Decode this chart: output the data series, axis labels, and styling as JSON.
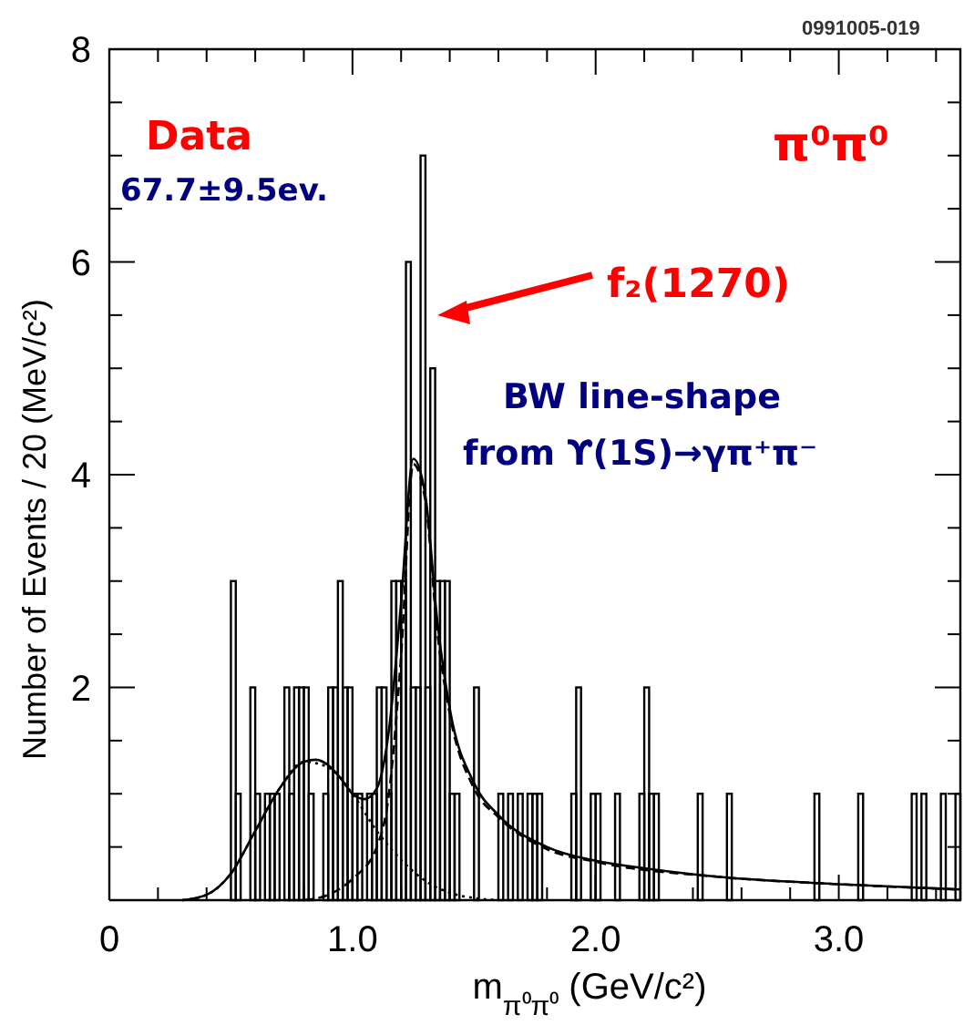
{
  "chart_data": {
    "type": "histogram",
    "xlabel": "m$_{π⁰π⁰}$ (GeV/c²)",
    "ylabel": "Number of Events / 20 (MeV/c²)",
    "xlim": [
      0,
      3.5
    ],
    "ylim": [
      0,
      8
    ],
    "xticks": [
      0,
      {
        "value": 0.2,
        "label": null
      },
      {
        "value": 0.4,
        "label": null
      },
      {
        "value": 0.6,
        "label": null
      },
      {
        "value": 0.8,
        "label": null
      },
      {
        "value": 1,
        "label": "1.0"
      },
      {
        "value": 1.2,
        "label": null
      },
      {
        "value": 1.4,
        "label": null
      },
      {
        "value": 1.6,
        "label": null
      },
      {
        "value": 1.8,
        "label": null
      },
      {
        "value": 2,
        "label": "2.0"
      },
      {
        "value": 2.2,
        "label": null
      },
      {
        "value": 2.4,
        "label": null
      },
      {
        "value": 2.6,
        "label": null
      },
      {
        "value": 2.8,
        "label": null
      },
      {
        "value": 3,
        "label": "3.0"
      },
      {
        "value": 3.2,
        "label": null
      },
      {
        "value": 3.4,
        "label": null
      }
    ],
    "yticks": [
      {
        "value": 0,
        "label": null
      },
      {
        "value": 0.5,
        "label": null
      },
      {
        "value": 1,
        "label": null
      },
      {
        "value": 1.5,
        "label": null
      },
      2,
      {
        "value": 2.5,
        "label": null
      },
      {
        "value": 3,
        "label": null
      },
      {
        "value": 3.5,
        "label": null
      },
      4,
      {
        "value": 4.5,
        "label": null
      },
      {
        "value": 5,
        "label": null
      },
      {
        "value": 5.5,
        "label": null
      },
      6,
      {
        "value": 6.5,
        "label": null
      },
      {
        "value": 7,
        "label": null
      },
      {
        "value": 7.5,
        "label": null
      },
      8
    ],
    "bins": [
      0,
      0.02,
      0.04,
      0.06,
      0.08,
      0.1,
      0.12,
      0.14,
      0.16,
      0.18,
      0.2,
      0.22,
      0.24,
      0.26,
      0.28,
      0.3,
      0.32,
      0.34,
      0.36,
      0.38,
      0.4,
      0.42,
      0.44,
      0.46,
      0.48,
      0.5,
      0.52,
      0.54,
      0.56,
      0.58,
      0.6,
      0.62,
      0.64,
      0.66,
      0.68,
      0.7,
      0.72,
      0.74,
      0.76,
      0.78,
      0.8,
      0.82,
      0.84,
      0.86,
      0.88,
      0.9,
      0.92,
      0.94,
      0.96,
      0.98,
      1,
      1.02,
      1.04,
      1.06,
      1.08,
      1.1,
      1.12,
      1.14,
      1.16,
      1.18,
      1.2,
      1.22,
      1.24,
      1.26,
      1.28,
      1.3,
      1.32,
      1.34,
      1.36,
      1.38,
      1.4,
      1.42,
      1.44,
      1.46,
      1.48,
      1.5,
      1.52,
      1.54,
      1.56,
      1.58,
      1.6,
      1.62,
      1.64,
      1.66,
      1.68,
      1.7,
      1.72,
      1.74,
      1.76,
      1.78,
      1.8,
      1.82,
      1.84,
      1.86,
      1.88,
      1.9,
      1.92,
      1.94,
      1.96,
      1.98,
      2,
      2.02,
      2.04,
      2.06,
      2.08,
      2.1,
      2.12,
      2.14,
      2.16,
      2.18,
      2.2,
      2.22,
      2.24,
      2.26,
      2.28,
      2.3,
      2.32,
      2.34,
      2.36,
      2.38,
      2.4,
      2.42,
      2.44,
      2.46,
      2.48,
      2.5,
      2.52,
      2.54,
      2.56,
      2.58,
      2.6,
      2.62,
      2.64,
      2.66,
      2.68,
      2.7,
      2.72,
      2.74,
      2.76,
      2.78,
      2.8,
      2.82,
      2.84,
      2.86,
      2.88,
      2.9,
      2.92,
      2.94,
      2.96,
      2.98,
      3,
      3.02,
      3.04,
      3.06,
      3.08,
      3.1,
      3.12,
      3.14,
      3.16,
      3.18,
      3.2,
      3.22,
      3.24,
      3.26,
      3.28,
      3.3,
      3.32,
      3.34,
      3.36,
      3.38,
      3.4,
      3.42,
      3.44,
      3.46,
      3.48,
      3.5
    ],
    "values": [
      0,
      0,
      0,
      0,
      0,
      0,
      0,
      0,
      0,
      0,
      0,
      0,
      0,
      0,
      0,
      0,
      0,
      0,
      0,
      0,
      0,
      0,
      0,
      0,
      0,
      3,
      1,
      0,
      0,
      2,
      1,
      0,
      1,
      1,
      1,
      0,
      2,
      1,
      2,
      2,
      2,
      1,
      0,
      0,
      1,
      2,
      2,
      3,
      2,
      2,
      1,
      1,
      0,
      1,
      1,
      2,
      2,
      1,
      3,
      3,
      3,
      6,
      2,
      2,
      7,
      2,
      5,
      3,
      3,
      3,
      1,
      1,
      0,
      0,
      0,
      2,
      0,
      0,
      0,
      0,
      1,
      0,
      1,
      0,
      1,
      0,
      1,
      1,
      1,
      0,
      0,
      0,
      0,
      0,
      0,
      1,
      2,
      0,
      0,
      1,
      1,
      0,
      0,
      0,
      1,
      0,
      0,
      0,
      0,
      1,
      2,
      1,
      1,
      0,
      0,
      0,
      0,
      0,
      0,
      0,
      0,
      1,
      0,
      0,
      0,
      0,
      0,
      1,
      0,
      0,
      0,
      0,
      0,
      0,
      0,
      0,
      0,
      0,
      0,
      0,
      0,
      0,
      0,
      0,
      0,
      1,
      0,
      0,
      0,
      0,
      0,
      0,
      0,
      0,
      1,
      0,
      0,
      0,
      0,
      0,
      0,
      0,
      0,
      0,
      0,
      1,
      0,
      1,
      0,
      0,
      0,
      1,
      0,
      0,
      1
    ],
    "color": "#000000",
    "series": [
      {
        "type": "line",
        "line_style": "solid",
        "color": "#000000",
        "x": [
          0.3,
          0.4,
          0.5,
          0.6,
          0.7,
          0.8,
          0.85,
          0.9,
          0.95,
          1.0,
          1.05,
          1.1,
          1.15,
          1.2,
          1.25,
          1.3,
          1.35,
          1.4,
          1.5,
          1.6,
          1.8,
          2.0,
          2.2,
          2.5,
          3.0,
          3.5
        ],
        "values": [
          0,
          0.05,
          0.25,
          0.65,
          1.05,
          1.3,
          1.32,
          1.27,
          1.15,
          1.0,
          0.95,
          1.05,
          1.6,
          2.8,
          4.15,
          3.8,
          2.6,
          1.8,
          1.1,
          0.8,
          0.5,
          0.37,
          0.3,
          0.22,
          0.15,
          0.1
        ]
      },
      {
        "type": "line",
        "line_style": "dotted",
        "color": "#000000",
        "x": [
          0.3,
          0.4,
          0.5,
          0.6,
          0.7,
          0.8,
          0.9,
          1.0,
          1.1,
          1.2,
          1.3,
          1.4,
          1.5,
          1.6
        ],
        "values": [
          0,
          0.05,
          0.25,
          0.65,
          1.05,
          1.3,
          1.25,
          1.0,
          0.65,
          0.38,
          0.18,
          0.07,
          0.02,
          0
        ]
      },
      {
        "type": "line",
        "line_style": "dashed",
        "color": "#000000",
        "x": [
          0.8,
          0.9,
          1.0,
          1.1,
          1.15,
          1.2,
          1.25,
          1.3,
          1.35,
          1.4,
          1.5,
          1.6,
          1.8,
          2.0,
          2.5,
          3.0,
          3.5
        ],
        "values": [
          0,
          0.05,
          0.2,
          0.5,
          1.0,
          2.3,
          4.1,
          3.75,
          2.5,
          1.75,
          1.05,
          0.78,
          0.48,
          0.36,
          0.22,
          0.15,
          0.1
        ]
      }
    ],
    "annotations": [
      "Data",
      "67.7±9.5ev.",
      "π⁰π⁰",
      "f₂(1270)",
      "BW line-shape",
      "from ϒ(1S)→γπ⁺π⁻",
      "0991005-019"
    ]
  }
}
